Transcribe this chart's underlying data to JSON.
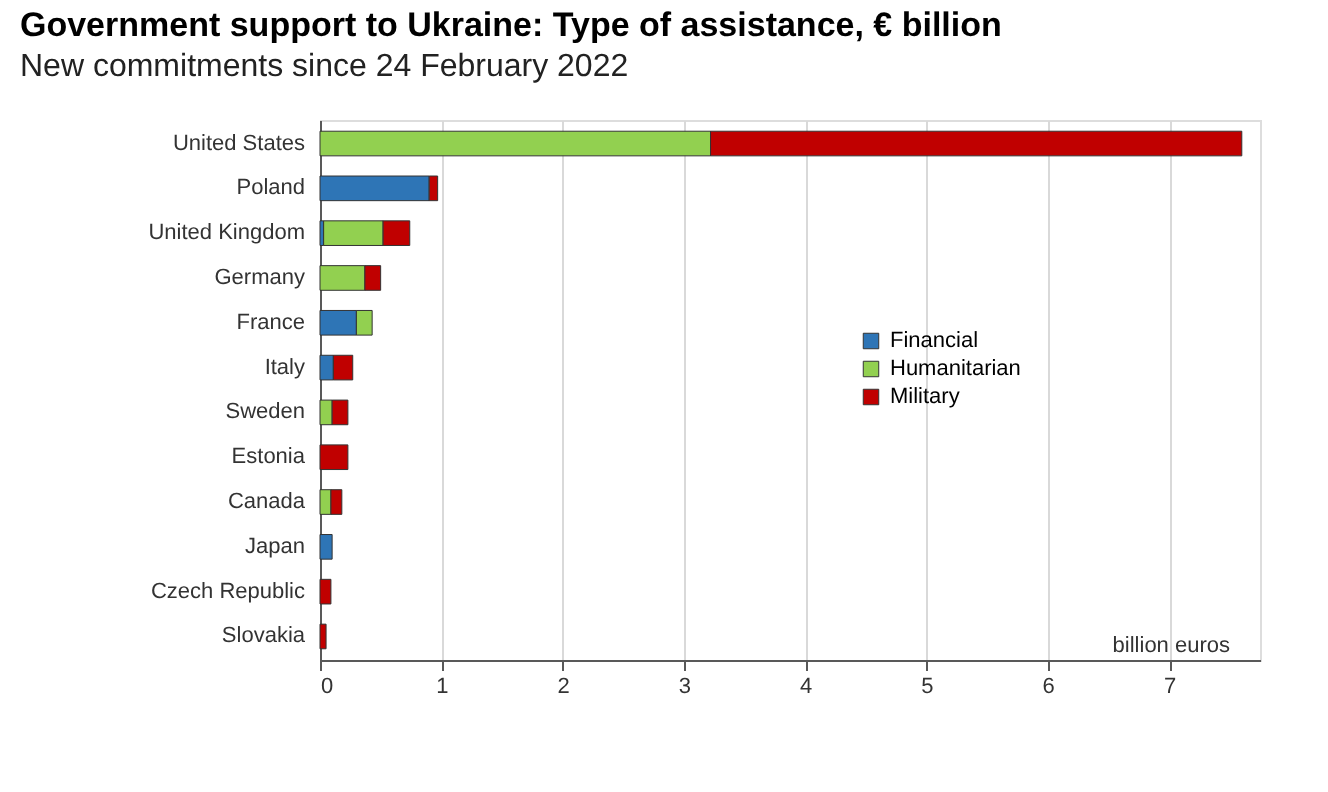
{
  "chart_data": {
    "type": "bar",
    "orientation": "horizontal",
    "stacked": true,
    "title": "Government support to Ukraine: Type of assistance, € billion",
    "subtitle": "New commitments since 24 February 2022",
    "categories": [
      "United States",
      "Poland",
      "United Kingdom",
      "Germany",
      "France",
      "Italy",
      "Sweden",
      "Estonia",
      "Canada",
      "Japan",
      "Czech Republic",
      "Slovakia"
    ],
    "series": [
      {
        "name": "Financial",
        "color": "#2e75b6",
        "values": [
          null,
          0.9,
          0.03,
          null,
          0.3,
          0.11,
          null,
          null,
          null,
          0.1,
          null,
          null
        ]
      },
      {
        "name": "Humanitarian",
        "color": "#92d050",
        "values": [
          3.22,
          null,
          0.49,
          0.37,
          0.13,
          null,
          0.1,
          null,
          0.09,
          null,
          null,
          null
        ]
      },
      {
        "name": "Military",
        "color": "#c00000",
        "values": [
          4.38,
          0.07,
          0.22,
          0.13,
          null,
          0.16,
          0.13,
          0.23,
          0.09,
          null,
          0.09,
          0.05
        ]
      }
    ],
    "xlim": [
      0,
      7.75
    ],
    "xticks": [
      0,
      1,
      2,
      3,
      4,
      5,
      6,
      7
    ],
    "grid": "x",
    "legend": "right",
    "annotations": [
      "billion euros"
    ]
  }
}
